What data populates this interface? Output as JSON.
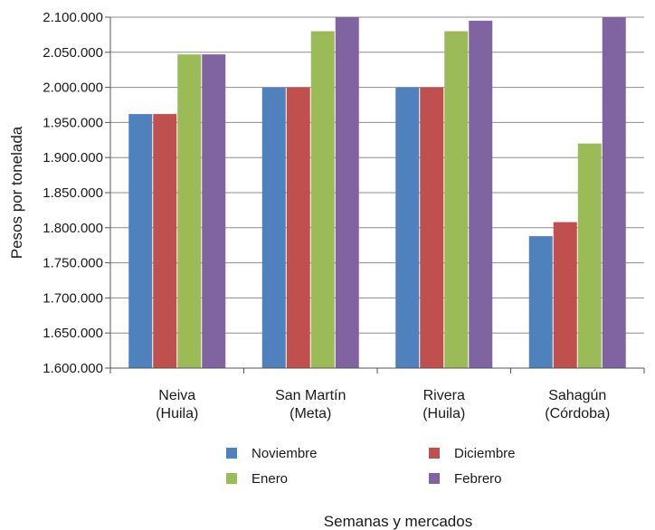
{
  "chart_data": {
    "type": "bar",
    "title": "",
    "xlabel": "Semanas y mercados",
    "ylabel": "Pesos por tonelada",
    "ylim": [
      1600000,
      2100000
    ],
    "y_ticks": [
      1600000,
      1650000,
      1700000,
      1750000,
      1800000,
      1850000,
      1900000,
      1950000,
      2000000,
      2050000,
      2100000
    ],
    "y_tick_labels": [
      "1.600.000",
      "1.650.000",
      "1.700.000",
      "1.750.000",
      "1.800.000",
      "1.850.000",
      "1.900.000",
      "1.950.000",
      "2.000.000",
      "2.050.000",
      "2.100.000"
    ],
    "grid": true,
    "legend_position": "bottom",
    "categories": [
      [
        "Neiva",
        "(Huila)"
      ],
      [
        "San Martín",
        "(Meta)"
      ],
      [
        "Rivera",
        "(Huila)"
      ],
      [
        "Sahagún",
        "(Córdoba)"
      ]
    ],
    "series": [
      {
        "name": "Noviembre",
        "color": "#4f81bd",
        "values": [
          1962000,
          2000000,
          2000000,
          1788000
        ]
      },
      {
        "name": "Diciembre",
        "color": "#c0504d",
        "values": [
          1962000,
          2000000,
          2000000,
          1808000
        ]
      },
      {
        "name": "Enero",
        "color": "#9bbb59",
        "values": [
          2047000,
          2080000,
          2080000,
          1920000
        ]
      },
      {
        "name": "Febrero",
        "color": "#8064a2",
        "values": [
          2047000,
          2100000,
          2095000,
          2100000
        ]
      }
    ]
  }
}
